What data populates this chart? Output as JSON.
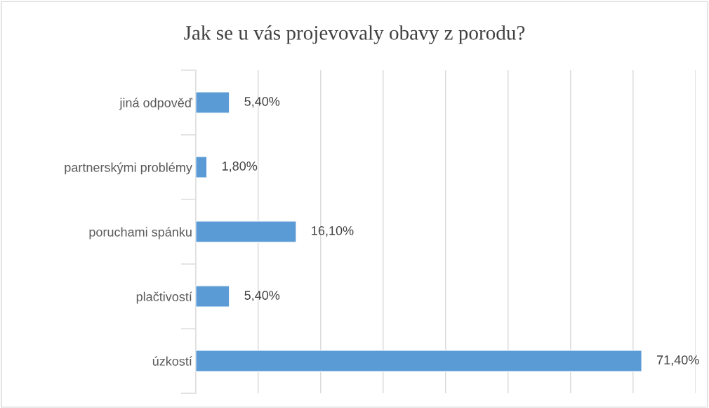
{
  "chart_data": {
    "type": "bar",
    "orientation": "horizontal",
    "title": "Jak se u vás projevovaly obavy z porodu?",
    "categories": [
      "jiná odpověď",
      "partnerskými problémy",
      "poruchami spánku",
      "plačtivostí",
      "úzkostí"
    ],
    "values": [
      5.4,
      1.8,
      16.1,
      5.4,
      71.4
    ],
    "value_labels": [
      "5,40%",
      "1,80%",
      "16,10%",
      "5,40%",
      "71,40%"
    ],
    "color": "#5b9bd5",
    "xlim": [
      0,
      80
    ],
    "xticks": [
      {
        "value": 0,
        "label": null
      },
      {
        "value": 10,
        "label": null
      },
      {
        "value": 20,
        "label": null
      },
      {
        "value": 30,
        "label": null
      },
      {
        "value": 40,
        "label": null
      },
      {
        "value": 50,
        "label": null
      },
      {
        "value": 60,
        "label": null
      },
      {
        "value": 70,
        "label": null
      },
      {
        "value": 80,
        "label": null
      }
    ],
    "tick_labels": "y",
    "grid": "x",
    "legend": false
  }
}
